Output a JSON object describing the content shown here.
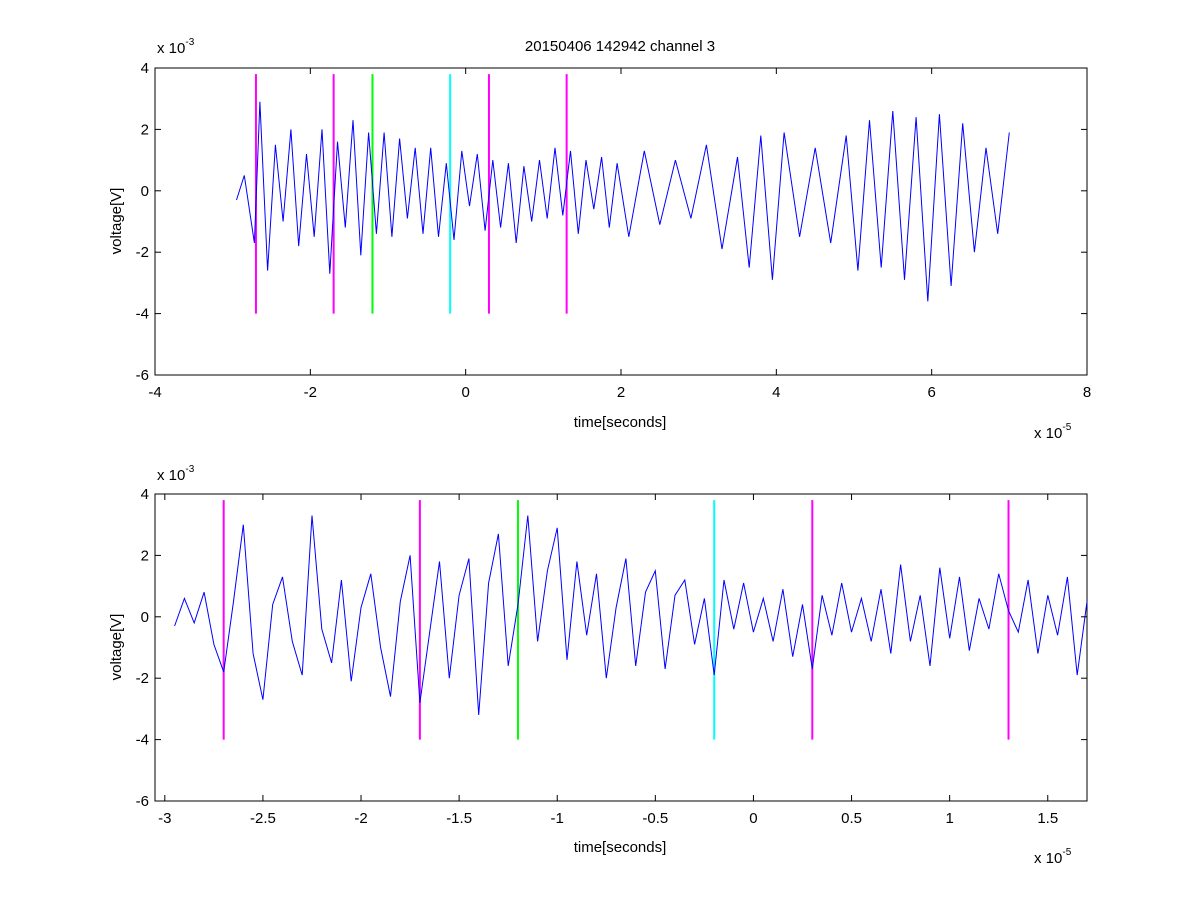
{
  "figure": {
    "title": "20150406 142942 channel 3"
  },
  "chart_data": [
    {
      "type": "line",
      "xlabel": "time[seconds]",
      "ylabel": "voltage[V]",
      "x_exponent_label": "x 10",
      "x_exponent": "-5",
      "y_exponent_label": "x 10",
      "y_exponent": "-3",
      "xlim": [
        -4,
        8
      ],
      "ylim": [
        -6,
        4
      ],
      "xticks": [
        -4,
        -2,
        0,
        2,
        4,
        6,
        8
      ],
      "xtick_labels": [
        "-4",
        "-2",
        "0",
        "2",
        "4",
        "6",
        "8"
      ],
      "yticks": [
        -6,
        -4,
        -2,
        0,
        2,
        4
      ],
      "ytick_labels": [
        "-6",
        "-4",
        "-2",
        "0",
        "2",
        "4"
      ],
      "grid": false,
      "series": [
        {
          "color": "#0000ff",
          "x": [
            -2.95,
            -2.85,
            -2.72,
            -2.65,
            -2.55,
            -2.45,
            -2.35,
            -2.25,
            -2.15,
            -2.05,
            -1.95,
            -1.85,
            -1.75,
            -1.65,
            -1.55,
            -1.45,
            -1.35,
            -1.25,
            -1.15,
            -1.05,
            -0.95,
            -0.85,
            -0.75,
            -0.65,
            -0.55,
            -0.45,
            -0.35,
            -0.25,
            -0.15,
            -0.05,
            0.05,
            0.15,
            0.25,
            0.35,
            0.45,
            0.55,
            0.65,
            0.75,
            0.85,
            0.95,
            1.05,
            1.15,
            1.25,
            1.35,
            1.45,
            1.55,
            1.65,
            1.75,
            1.85,
            1.95,
            2.1,
            2.3,
            2.5,
            2.7,
            2.9,
            3.1,
            3.3,
            3.5,
            3.65,
            3.8,
            3.95,
            4.1,
            4.3,
            4.5,
            4.7,
            4.9,
            5.05,
            5.2,
            5.35,
            5.5,
            5.65,
            5.8,
            5.95,
            6.1,
            6.25,
            6.4,
            6.55,
            6.7,
            6.85,
            7.0
          ],
          "y": [
            -0.3,
            0.5,
            -1.7,
            2.9,
            -2.6,
            1.5,
            -1.0,
            2.0,
            -1.8,
            1.2,
            -1.5,
            2.0,
            -2.7,
            1.6,
            -1.2,
            2.3,
            -2.1,
            1.9,
            -1.4,
            1.9,
            -1.5,
            1.7,
            -0.9,
            1.4,
            -1.4,
            1.4,
            -1.5,
            0.9,
            -1.6,
            1.3,
            -0.5,
            1.2,
            -1.3,
            1.0,
            -1.2,
            0.9,
            -1.7,
            0.8,
            -1.0,
            1.0,
            -0.9,
            1.4,
            -0.8,
            1.3,
            -1.4,
            1.0,
            -0.6,
            1.1,
            -1.2,
            0.9,
            -1.5,
            1.3,
            -1.1,
            1.0,
            -0.9,
            1.5,
            -1.9,
            1.1,
            -2.5,
            1.8,
            -2.9,
            1.9,
            -1.5,
            1.4,
            -1.7,
            1.8,
            -2.6,
            2.3,
            -2.5,
            2.6,
            -2.9,
            2.4,
            -3.6,
            2.5,
            -3.1,
            2.2,
            -2.0,
            1.4,
            -1.4,
            1.9
          ]
        }
      ],
      "markers": [
        {
          "x": -2.7,
          "color": "#ff00ff"
        },
        {
          "x": -1.7,
          "color": "#ff00ff"
        },
        {
          "x": -1.2,
          "color": "#00ff00"
        },
        {
          "x": -0.2,
          "color": "#00ffff"
        },
        {
          "x": 0.3,
          "color": "#ff00ff"
        },
        {
          "x": 1.3,
          "color": "#ff00ff"
        }
      ],
      "marker_ylim": [
        -4,
        3.8
      ]
    },
    {
      "type": "line",
      "xlabel": "time[seconds]",
      "ylabel": "voltage[V]",
      "x_exponent_label": "x 10",
      "x_exponent": "-5",
      "y_exponent_label": "x 10",
      "y_exponent": "-3",
      "xlim": [
        -3.05,
        1.7
      ],
      "ylim": [
        -6,
        4
      ],
      "xticks": [
        -3,
        -2.5,
        -2,
        -1.5,
        -1,
        -0.5,
        0,
        0.5,
        1,
        1.5
      ],
      "xtick_labels": [
        "-3",
        "-2.5",
        "-2",
        "-1.5",
        "-1",
        "-0.5",
        "0",
        "0.5",
        "1",
        "1.5"
      ],
      "yticks": [
        -6,
        -4,
        -2,
        0,
        2,
        4
      ],
      "ytick_labels": [
        "-6",
        "-4",
        "-2",
        "0",
        "2",
        "4"
      ],
      "grid": false,
      "series": [
        {
          "color": "#0000ff",
          "x": [
            -2.95,
            -2.9,
            -2.85,
            -2.8,
            -2.75,
            -2.7,
            -2.65,
            -2.6,
            -2.55,
            -2.5,
            -2.45,
            -2.4,
            -2.35,
            -2.3,
            -2.25,
            -2.2,
            -2.15,
            -2.1,
            -2.05,
            -2.0,
            -1.95,
            -1.9,
            -1.85,
            -1.8,
            -1.75,
            -1.7,
            -1.65,
            -1.6,
            -1.55,
            -1.5,
            -1.45,
            -1.4,
            -1.35,
            -1.3,
            -1.25,
            -1.2,
            -1.15,
            -1.1,
            -1.05,
            -1.0,
            -0.95,
            -0.9,
            -0.85,
            -0.8,
            -0.75,
            -0.7,
            -0.65,
            -0.6,
            -0.55,
            -0.5,
            -0.45,
            -0.4,
            -0.35,
            -0.3,
            -0.25,
            -0.2,
            -0.15,
            -0.1,
            -0.05,
            0.0,
            0.05,
            0.1,
            0.15,
            0.2,
            0.25,
            0.3,
            0.35,
            0.4,
            0.45,
            0.5,
            0.55,
            0.6,
            0.65,
            0.7,
            0.75,
            0.8,
            0.85,
            0.9,
            0.95,
            1.0,
            1.05,
            1.1,
            1.15,
            1.2,
            1.25,
            1.3,
            1.35,
            1.4,
            1.45,
            1.5,
            1.55,
            1.6,
            1.65,
            1.7
          ],
          "y": [
            -0.3,
            0.6,
            -0.2,
            0.8,
            -0.9,
            -1.8,
            0.5,
            3.0,
            -1.2,
            -2.7,
            0.4,
            1.3,
            -0.8,
            -1.9,
            3.3,
            -0.4,
            -1.5,
            1.2,
            -2.1,
            0.3,
            1.4,
            -1.0,
            -2.6,
            0.5,
            2.0,
            -2.8,
            -0.5,
            1.8,
            -2.0,
            0.7,
            1.9,
            -3.2,
            1.1,
            2.7,
            -1.6,
            0.4,
            3.3,
            -0.8,
            1.5,
            2.9,
            -1.4,
            1.8,
            -0.6,
            1.4,
            -2.0,
            0.3,
            1.9,
            -1.6,
            0.8,
            1.5,
            -1.7,
            0.7,
            1.2,
            -0.9,
            0.6,
            -1.9,
            1.2,
            -0.4,
            1.1,
            -0.5,
            0.6,
            -0.8,
            0.9,
            -1.3,
            0.4,
            -1.7,
            0.7,
            -0.6,
            1.1,
            -0.5,
            0.6,
            -0.8,
            0.9,
            -1.2,
            1.7,
            -0.8,
            0.7,
            -1.6,
            1.6,
            -0.7,
            1.3,
            -1.1,
            0.6,
            -0.4,
            1.4,
            0.2,
            -0.5,
            1.2,
            -1.2,
            0.7,
            -0.6,
            1.3,
            -1.9,
            0.5
          ]
        }
      ],
      "markers": [
        {
          "x": -2.7,
          "color": "#ff00ff"
        },
        {
          "x": -1.7,
          "color": "#ff00ff"
        },
        {
          "x": -1.2,
          "color": "#00ff00"
        },
        {
          "x": -0.2,
          "color": "#00ffff"
        },
        {
          "x": 0.3,
          "color": "#ff00ff"
        },
        {
          "x": 1.3,
          "color": "#ff00ff"
        }
      ],
      "marker_ylim": [
        -4,
        3.8
      ]
    }
  ]
}
